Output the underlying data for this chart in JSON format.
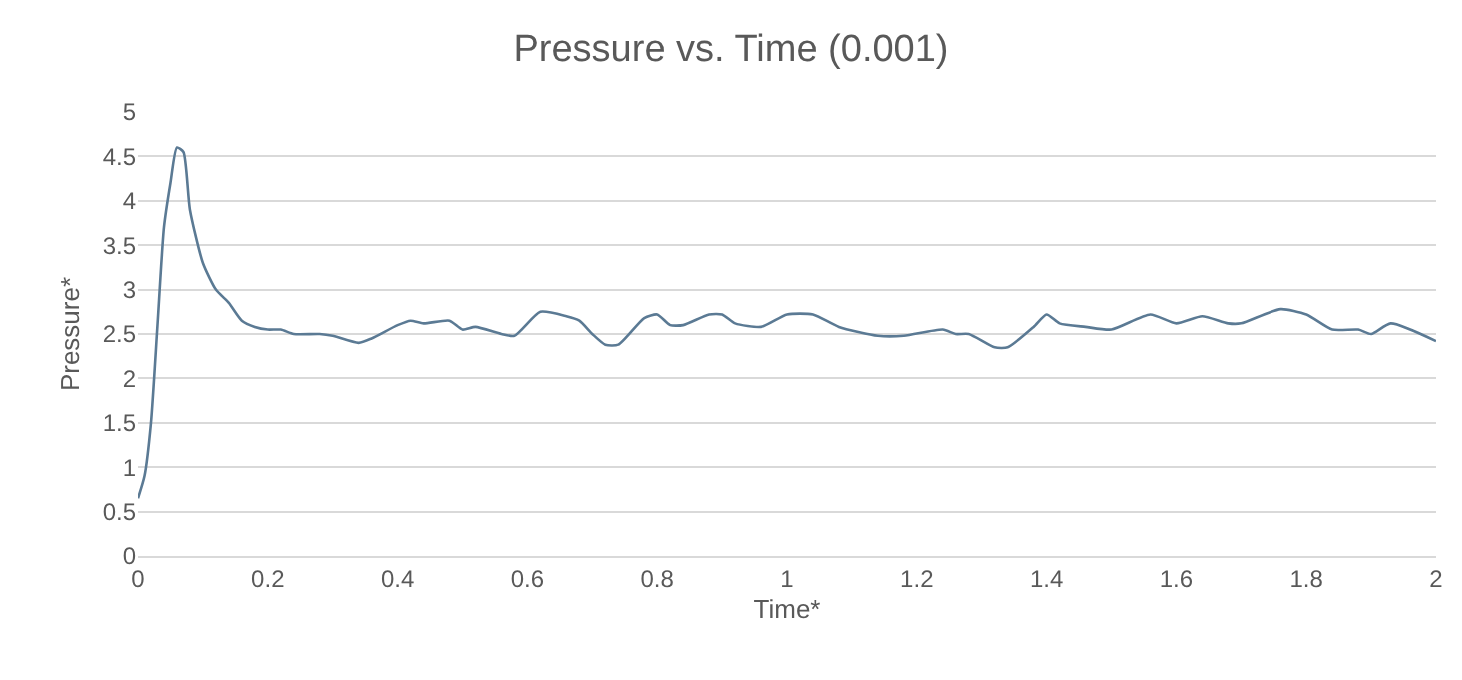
{
  "chart_data": {
    "type": "line",
    "title": "Pressure vs. Time (0.001)",
    "xlabel": "Time*",
    "ylabel": "Pressure*",
    "x": [
      0,
      0.01,
      0.02,
      0.03,
      0.04,
      0.05,
      0.06,
      0.07,
      0.08,
      0.1,
      0.12,
      0.14,
      0.16,
      0.18,
      0.2,
      0.22,
      0.24,
      0.28,
      0.3,
      0.34,
      0.36,
      0.4,
      0.42,
      0.44,
      0.48,
      0.5,
      0.52,
      0.56,
      0.58,
      0.62,
      0.66,
      0.68,
      0.7,
      0.72,
      0.74,
      0.78,
      0.8,
      0.82,
      0.84,
      0.88,
      0.9,
      0.92,
      0.96,
      1.0,
      1.04,
      1.08,
      1.14,
      1.18,
      1.24,
      1.26,
      1.28,
      1.32,
      1.34,
      1.38,
      1.4,
      1.42,
      1.46,
      1.5,
      1.56,
      1.6,
      1.64,
      1.68,
      1.7,
      1.76,
      1.8,
      1.84,
      1.88,
      1.9,
      1.93,
      2.0
    ],
    "series": [
      {
        "color": "#5b7a94",
        "values": [
          0.65,
          0.9,
          1.5,
          2.6,
          3.7,
          4.2,
          4.6,
          4.55,
          3.9,
          3.3,
          3.0,
          2.85,
          2.65,
          2.58,
          2.55,
          2.55,
          2.5,
          2.5,
          2.48,
          2.4,
          2.45,
          2.6,
          2.65,
          2.62,
          2.65,
          2.55,
          2.58,
          2.5,
          2.48,
          2.75,
          2.7,
          2.65,
          2.5,
          2.38,
          2.38,
          2.68,
          2.72,
          2.6,
          2.6,
          2.72,
          2.72,
          2.62,
          2.58,
          2.72,
          2.72,
          2.58,
          2.48,
          2.48,
          2.55,
          2.5,
          2.5,
          2.35,
          2.35,
          2.58,
          2.72,
          2.62,
          2.58,
          2.55,
          2.72,
          2.62,
          2.7,
          2.62,
          2.62,
          2.78,
          2.72,
          2.55,
          2.55,
          2.5,
          2.62,
          2.42
        ]
      }
    ],
    "xlim": [
      0,
      2
    ],
    "xticks": [
      0,
      0.2,
      0.4,
      0.6,
      0.8,
      1,
      1.2,
      1.4,
      1.6,
      1.8,
      2
    ],
    "ylim": [
      0,
      5
    ],
    "yticks": [
      0,
      0.5,
      1,
      1.5,
      2,
      2.5,
      3,
      3.5,
      4,
      4.5,
      5
    ],
    "grid": "y",
    "marker": "none",
    "line_style": "solid"
  }
}
